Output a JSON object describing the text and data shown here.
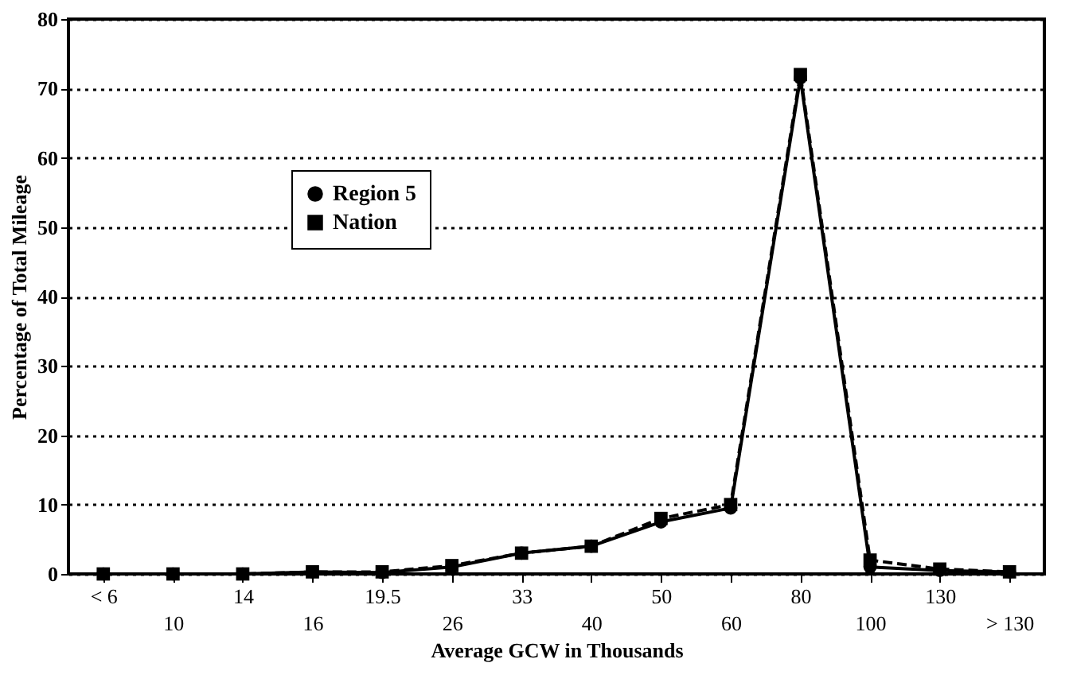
{
  "chart_data": {
    "type": "line",
    "xlabel": "Average GCW in Thousands",
    "ylabel": "Percentage of Total Mileage",
    "categories": [
      "< 6",
      "10",
      "14",
      "16",
      "19.5",
      "26",
      "33",
      "40",
      "50",
      "60",
      "80",
      "100",
      "130",
      "> 130"
    ],
    "series": [
      {
        "name": "Region 5",
        "color": "#000000",
        "marker": "circle",
        "line_style": "solid",
        "values": [
          0,
          0,
          0,
          0.3,
          0.2,
          1,
          3,
          4,
          7.5,
          9.5,
          71.5,
          1,
          0.5,
          0.3
        ]
      },
      {
        "name": "Nation",
        "color": "#000000",
        "marker": "square",
        "line_style": "dashed",
        "values": [
          0,
          0,
          0,
          0.3,
          0.3,
          1.2,
          3,
          4,
          8,
          10,
          72,
          2,
          0.7,
          0.3
        ]
      }
    ],
    "ylim": [
      0,
      80
    ],
    "yticks": [
      0,
      10,
      20,
      30,
      40,
      50,
      60,
      70,
      80
    ],
    "grid": "y",
    "legend": "top left"
  }
}
